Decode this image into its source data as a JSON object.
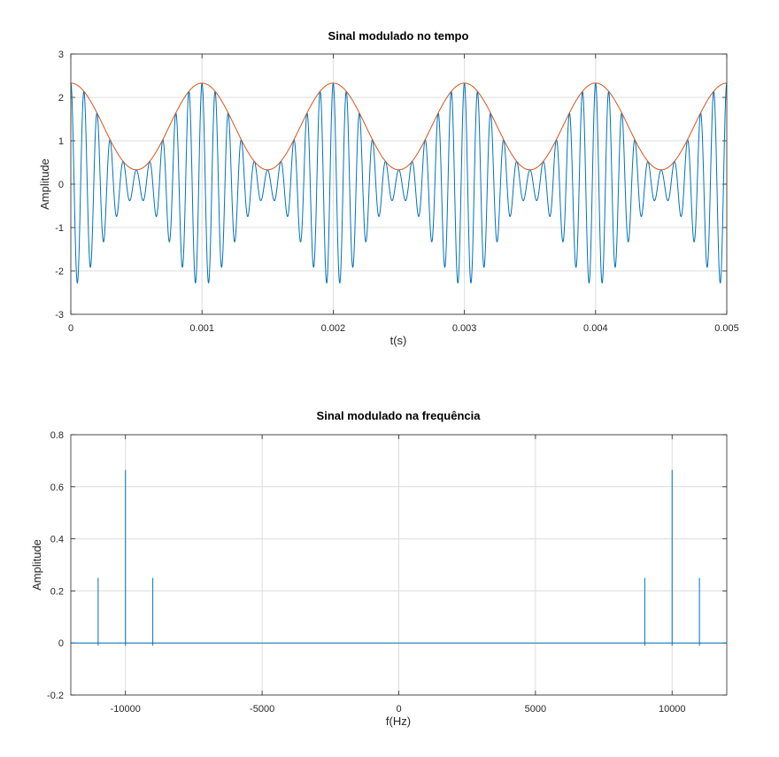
{
  "colors": {
    "signal": "#0072bd",
    "envelope": "#d95319",
    "grid": "#dcdcdc",
    "axes": "#262626"
  },
  "chart_data": [
    {
      "type": "line",
      "title": "Sinal modulado no tempo",
      "xlabel": "t(s)",
      "ylabel": "Amplitude",
      "xlim": [
        0,
        0.005
      ],
      "ylim": [
        -3,
        3
      ],
      "xticks": [
        0,
        0.001,
        0.002,
        0.003,
        0.004,
        0.005
      ],
      "xtick_labels": [
        "0",
        "0.001",
        "0.002",
        "0.003",
        "0.004",
        "0.005"
      ],
      "yticks": [
        3,
        2,
        1,
        0,
        -1,
        -2,
        -3
      ],
      "ytick_labels": [
        "3",
        "2",
        "1",
        "0",
        "-1",
        "-2",
        "-3"
      ],
      "grid": true,
      "signal_model": {
        "carrier_frequency_hz": 10000,
        "message_frequency_hz": 1000,
        "carrier_amplitude": 1.33,
        "message_amplitude": 1.0
      },
      "series": [
        {
          "type": "line",
          "color": "#0072bd",
          "expression": "(1.33 + cos(2*pi*1000*t)) * cos(2*pi*10000*t)",
          "samples": 2001
        },
        {
          "type": "line",
          "color": "#d95319",
          "expression": "1.33 + cos(2*pi*1000*t)",
          "samples": 401
        }
      ]
    },
    {
      "type": "stem",
      "title": "Sinal modulado na frequência",
      "xlabel": "f(Hz)",
      "ylabel": "Amplitude",
      "xlim": [
        -12000,
        12000
      ],
      "ylim": [
        -0.2,
        0.8
      ],
      "xticks": [
        -10000,
        -5000,
        0,
        5000,
        10000
      ],
      "xtick_labels": [
        "-10000",
        "-5000",
        "0",
        "5000",
        "10000"
      ],
      "yticks": [
        0.8,
        0.6,
        0.4,
        0.2,
        0,
        -0.2
      ],
      "ytick_labels": [
        "0.8",
        "0.6",
        "0.4",
        "0.2",
        "0",
        "-0.2"
      ],
      "grid": true,
      "series": [
        {
          "color": "#0072bd",
          "x": [
            -11000,
            -10000,
            -9000,
            9000,
            10000,
            11000
          ],
          "values": [
            0.25,
            0.665,
            0.25,
            0.25,
            0.665,
            0.25
          ]
        }
      ]
    }
  ]
}
